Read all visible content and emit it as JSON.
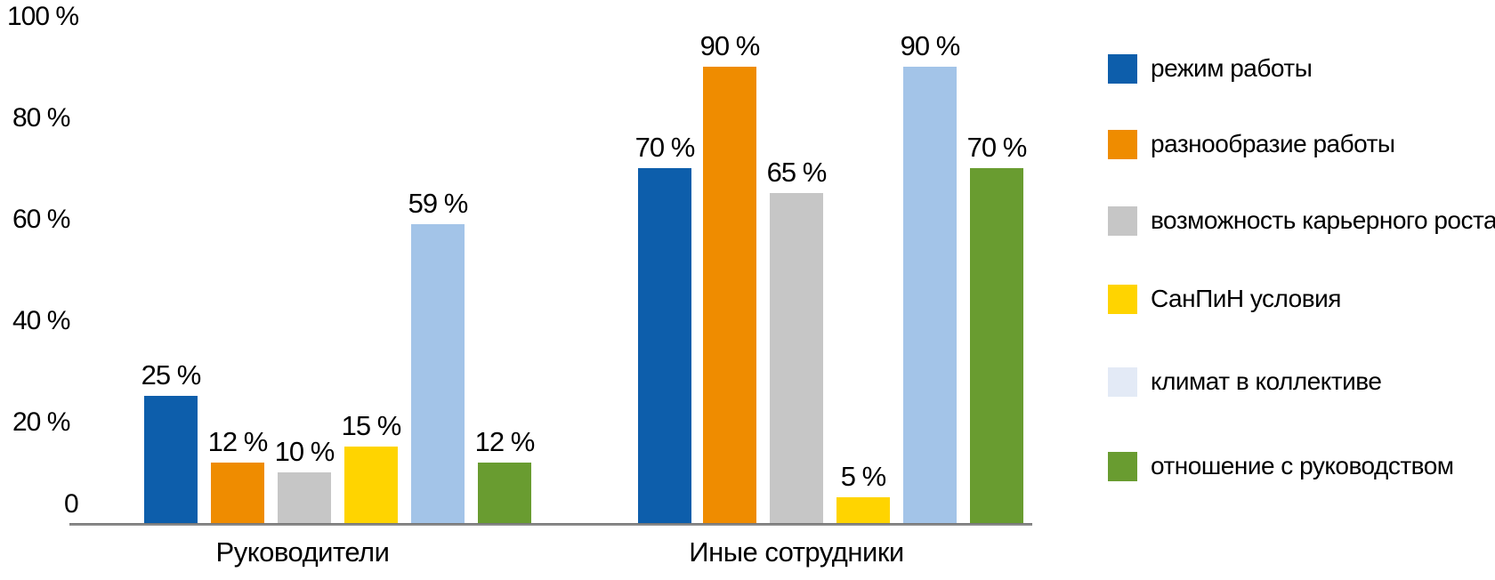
{
  "chart_data": {
    "type": "bar",
    "title": "",
    "xlabel": "",
    "ylabel": "",
    "grid": false,
    "legend_position": "right",
    "ylim": [
      0,
      100
    ],
    "y_ticks": [
      "100 %",
      "80 %",
      "60 %",
      "40 %",
      "20 %",
      "0"
    ],
    "categories": [
      "Руководители",
      "Иные сотрудники"
    ],
    "series": [
      {
        "name": "режим работы",
        "color": "#0D5EAB",
        "values": [
          25,
          70
        ]
      },
      {
        "name": "разнообразие работы",
        "color": "#EF8C00",
        "values": [
          12,
          90
        ]
      },
      {
        "name": "возможность карьерного роста",
        "color": "#C6C6C6",
        "values": [
          10,
          65
        ]
      },
      {
        "name": "СанПиН условия",
        "color": "#FFD400",
        "values": [
          15,
          5
        ]
      },
      {
        "name": " климат в коллективе",
        "color": "#A3C4E8",
        "legend_color": "#E3EAF6",
        "values": [
          59,
          90
        ]
      },
      {
        "name": " отношение с руководством",
        "color": "#699C30",
        "values": [
          12,
          70
        ]
      }
    ],
    "bar_labels": [
      [
        "25 %",
        "12 %",
        "10 %",
        "15 %",
        "59 %",
        "12 %"
      ],
      [
        "70 %",
        "90 %",
        "65 %",
        "5 %",
        "90 %",
        "70 %"
      ]
    ],
    "axis_color": "#7F7F7F",
    "text_color": "#000000",
    "background_color": "#FFFFFF"
  }
}
